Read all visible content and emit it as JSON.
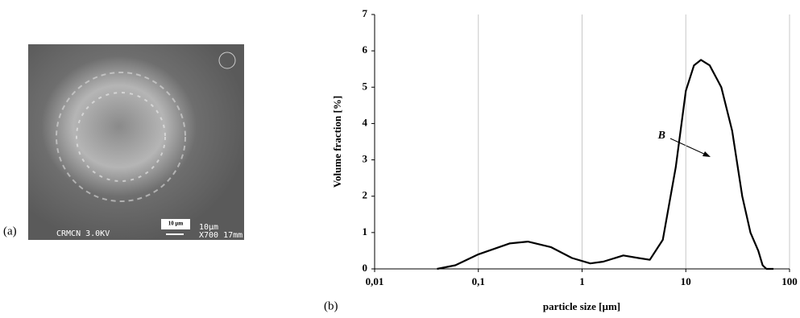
{
  "image": {
    "label": "(a)",
    "scale_bar": "10 µm",
    "instrument": "CRMCN 3.0KV",
    "scale_text": "10µm",
    "magnification": "X700 17mm"
  },
  "chart_data": {
    "type": "line",
    "panel_label": "(b)",
    "x_label": "particle size [µm]",
    "y_label": "Volume fraction [%]",
    "annotation": "B",
    "x": [
      0.04,
      0.06,
      0.1,
      0.2,
      0.3,
      0.5,
      0.8,
      1.2,
      1.6,
      2.5,
      3.5,
      4.5,
      6,
      8,
      10,
      12,
      14,
      17,
      22,
      28,
      35,
      42,
      50,
      55,
      60,
      70
    ],
    "values": [
      0,
      0.1,
      0.4,
      0.7,
      0.75,
      0.6,
      0.3,
      0.15,
      0.2,
      0.37,
      0.3,
      0.25,
      0.8,
      2.8,
      4.9,
      5.6,
      5.75,
      5.6,
      5,
      3.8,
      2,
      1,
      0.5,
      0.1,
      0,
      0
    ],
    "color": "#000000",
    "xlog": true,
    "xlim": [
      0.01,
      100
    ],
    "xticks": [
      {
        "value": 0.01,
        "label": "0,01"
      },
      {
        "value": 0.1,
        "label": "0,1"
      },
      1,
      10,
      100
    ],
    "ylim": [
      0,
      7
    ],
    "yticks": [
      0,
      1,
      2,
      3,
      4,
      5,
      6,
      7
    ],
    "grid": "x"
  }
}
